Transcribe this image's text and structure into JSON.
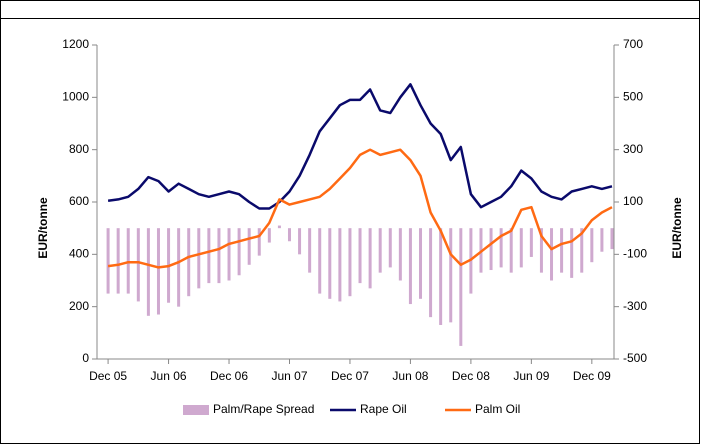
{
  "chart_data": {
    "type": "line",
    "y_label": "EUR/tonne",
    "y2_label": "EUR/tonne",
    "x": [
      0,
      1,
      2,
      3,
      4,
      5,
      6,
      7,
      8,
      9,
      10,
      11,
      12,
      13,
      14,
      15,
      16,
      17,
      18,
      19,
      20,
      21,
      22,
      23,
      24,
      25,
      26,
      27,
      28,
      29,
      30,
      31,
      32,
      33,
      34,
      35,
      36,
      37,
      38,
      39,
      40,
      41,
      42,
      43,
      44,
      45,
      46,
      47,
      48,
      49,
      50
    ],
    "xlim": [
      -1.1,
      50.2
    ],
    "xticks": [
      {
        "value": 0,
        "label": "Dec 05"
      },
      {
        "value": 6,
        "label": "Jun 06"
      },
      {
        "value": 12,
        "label": "Dec 06"
      },
      {
        "value": 18,
        "label": "Jun 07"
      },
      {
        "value": 24,
        "label": "Dec 07"
      },
      {
        "value": 30,
        "label": "Jun 08"
      },
      {
        "value": 36,
        "label": "Dec 08"
      },
      {
        "value": 42,
        "label": "Jun 09"
      },
      {
        "value": 48,
        "label": "Dec 09"
      }
    ],
    "ylim": [
      0,
      1200
    ],
    "yticks": [
      0,
      200,
      400,
      600,
      800,
      1000,
      1200
    ],
    "y2lim": [
      -500,
      700
    ],
    "y2ticks": [
      -500,
      -300,
      -100,
      100,
      300,
      500,
      700
    ],
    "series": [
      {
        "name": "Palm/Rape Spread",
        "color": "#cfa9cf",
        "kind": "bar",
        "axis": "y2",
        "values": [
          -250,
          -250,
          -250,
          -280,
          -335,
          -330,
          -285,
          -300,
          -260,
          -230,
          -210,
          -210,
          -200,
          -180,
          -140,
          -105,
          -55,
          10,
          -50,
          -100,
          -170,
          -250,
          -270,
          -280,
          -260,
          -210,
          -230,
          -170,
          -150,
          -200,
          -290,
          -270,
          -340,
          -370,
          -360,
          -450,
          -250,
          -170,
          -160,
          -150,
          -170,
          -150,
          -110,
          -170,
          -200,
          -170,
          -190,
          -170,
          -130,
          -90,
          -80
        ]
      },
      {
        "name": "Rape Oil",
        "color": "#0a0a6b",
        "kind": "line",
        "values": [
          605,
          610,
          620,
          650,
          695,
          680,
          640,
          670,
          650,
          630,
          620,
          630,
          640,
          630,
          600,
          575,
          575,
          600,
          640,
          700,
          780,
          870,
          920,
          970,
          990,
          990,
          1030,
          950,
          940,
          1000,
          1050,
          970,
          900,
          860,
          760,
          810,
          630,
          580,
          600,
          620,
          660,
          720,
          690,
          640,
          620,
          610,
          640,
          650,
          660,
          650,
          660
        ]
      },
      {
        "name": "Palm Oil",
        "color": "#ff6a13",
        "kind": "line",
        "values": [
          355,
          360,
          370,
          370,
          360,
          350,
          355,
          370,
          390,
          400,
          410,
          420,
          440,
          450,
          460,
          470,
          520,
          610,
          590,
          600,
          610,
          620,
          650,
          690,
          730,
          780,
          800,
          780,
          790,
          800,
          760,
          700,
          560,
          490,
          400,
          360,
          380,
          410,
          440,
          470,
          490,
          570,
          580,
          470,
          420,
          440,
          450,
          480,
          530,
          560,
          580
        ]
      }
    ]
  }
}
